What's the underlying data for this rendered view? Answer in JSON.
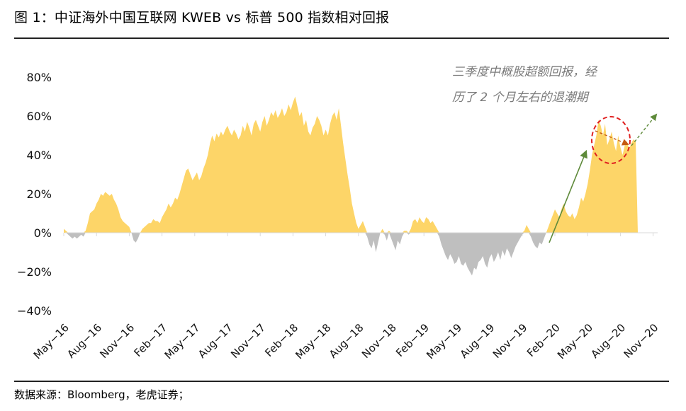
{
  "header": {
    "title": "图 1：中证海外中国互联网 KWEB vs 标普 500 指数相对回报"
  },
  "footer": {
    "source": "数据来源：Bloomberg，老虎证券；"
  },
  "annotation": {
    "line1": "三季度中概股超额回报，经",
    "line2": "历了 2 个月左右的退潮期"
  },
  "colors": {
    "positive": "#FDD568",
    "negative": "#BFBFBF",
    "arrow_up": "#5E8A3A",
    "arrow_down": "#C55A11",
    "circle": "#E02020",
    "axis": "#D9D9D9"
  },
  "chart_data": {
    "type": "area",
    "title": "中证海外中国互联网 KWEB vs 标普 500 指数相对回报",
    "xlabel": "",
    "ylabel": "",
    "ylim": [
      -0.4,
      0.8
    ],
    "y_ticks": [
      0.8,
      0.6,
      0.4,
      0.2,
      0,
      -0.2,
      -0.4
    ],
    "y_tick_labels": [
      "80%",
      "60%",
      "40%",
      "20%",
      "0%",
      "−20%",
      "−40%"
    ],
    "x_ticks": [
      "May−16",
      "Aug−16",
      "Nov−16",
      "Feb−17",
      "May−17",
      "Aug−17",
      "Nov−17",
      "Feb−18",
      "May−18",
      "Aug−18",
      "Nov−18",
      "Feb−19",
      "May−19",
      "Aug−19",
      "Nov−19",
      "Feb−20",
      "May−20",
      "Aug−20",
      "Nov−20"
    ],
    "series": [
      {
        "name": "KWEB vs 标普500 相对回报",
        "x": [
          0,
          0.2,
          0.4,
          0.6,
          0.8,
          1.0,
          1.2,
          1.4,
          1.6,
          1.8,
          2.0,
          2.2,
          2.4,
          2.6,
          2.8,
          3.0,
          3.2,
          3.4,
          3.6,
          3.8,
          4.0,
          4.2,
          4.4,
          4.6,
          4.8,
          5.0,
          5.2,
          5.4,
          5.6,
          5.8,
          6.0,
          6.2,
          6.4,
          6.6,
          6.8,
          7.0,
          7.2,
          7.4,
          7.6,
          7.8,
          8.0,
          8.2,
          8.4,
          8.6,
          8.8,
          9.0,
          9.2,
          9.4,
          9.6,
          9.8,
          10.0,
          10.2,
          10.4,
          10.6,
          10.8,
          11.0,
          11.2,
          11.4,
          11.6,
          11.8,
          12.0,
          12.2,
          12.4,
          12.6,
          12.8,
          13.0,
          13.2,
          13.4,
          13.6,
          13.8,
          14.0,
          14.2,
          14.4,
          14.6,
          14.8,
          15.0,
          15.2,
          15.4,
          15.6,
          15.8,
          16.0,
          16.2,
          16.4,
          16.6,
          16.8,
          17.0,
          17.2,
          17.4,
          17.6,
          17.8,
          18.0,
          18.2,
          18.4,
          18.6,
          18.8,
          19.0,
          19.2,
          19.4,
          19.6,
          19.8,
          20.0,
          20.2,
          20.4,
          20.6,
          20.8,
          21.0,
          21.2,
          21.4,
          21.6,
          21.8,
          22.0,
          22.2,
          22.4,
          22.6,
          22.8,
          23.0,
          23.2,
          23.4,
          23.6,
          23.8,
          24.0,
          24.2,
          24.4,
          24.6,
          24.8,
          25.0,
          25.2,
          25.4,
          25.6,
          25.8,
          26.0,
          26.2,
          26.4,
          26.6,
          26.8,
          27.0,
          27.2,
          27.4,
          27.6,
          27.8,
          28.0,
          28.2,
          28.4,
          28.6,
          28.8,
          29.0,
          29.2,
          29.4,
          29.6,
          29.8,
          30.0,
          30.2,
          30.4,
          30.6,
          30.8,
          31.0,
          31.2,
          31.4,
          31.6,
          31.8,
          32.0,
          32.2,
          32.4,
          32.6,
          32.8,
          33.0,
          33.2,
          33.4,
          33.6,
          33.8,
          34.0,
          34.2,
          34.4,
          34.6,
          34.8,
          35.0,
          35.2,
          35.4,
          35.6,
          35.8,
          36.0,
          36.2,
          36.4,
          36.6,
          36.8,
          37.0,
          37.2,
          37.4,
          37.6,
          37.8,
          38.0,
          38.2,
          38.4,
          38.6,
          38.8,
          39.0,
          39.2,
          39.4,
          39.6,
          39.8,
          40.0,
          40.2,
          40.4,
          40.6,
          40.8,
          41.0,
          41.2,
          41.4,
          41.6,
          41.8,
          42.0,
          42.2,
          42.4,
          42.6,
          42.8,
          43.0,
          43.2,
          43.4,
          43.6,
          43.8,
          44.0,
          44.2,
          44.4,
          44.6,
          44.8,
          45.0,
          45.2,
          45.4,
          45.6,
          45.8,
          46.0,
          46.2,
          46.4,
          46.6,
          46.8,
          47.0,
          47.2,
          47.4,
          47.6,
          47.8,
          48.0,
          48.2,
          48.4,
          48.6,
          48.8,
          49.0,
          49.2,
          49.4,
          49.6,
          49.8,
          50.0,
          50.2,
          50.4,
          50.6,
          50.8,
          51.0,
          51.2,
          51.4,
          51.6,
          51.8,
          52.0,
          52.2,
          52.4,
          52.6
        ],
        "values": [
          0.02,
          0.01,
          -0.01,
          -0.02,
          -0.03,
          -0.02,
          -0.03,
          -0.02,
          -0.01,
          -0.02,
          0.01,
          0.05,
          0.1,
          0.11,
          0.12,
          0.15,
          0.17,
          0.2,
          0.19,
          0.21,
          0.2,
          0.19,
          0.2,
          0.17,
          0.15,
          0.12,
          0.08,
          0.06,
          0.05,
          0.04,
          0.03,
          0.0,
          -0.04,
          -0.05,
          -0.03,
          0.0,
          0.02,
          0.03,
          0.04,
          0.05,
          0.05,
          0.07,
          0.06,
          0.06,
          0.05,
          0.08,
          0.1,
          0.12,
          0.15,
          0.13,
          0.15,
          0.18,
          0.17,
          0.2,
          0.24,
          0.28,
          0.32,
          0.33,
          0.3,
          0.27,
          0.29,
          0.31,
          0.27,
          0.29,
          0.33,
          0.36,
          0.4,
          0.46,
          0.5,
          0.47,
          0.51,
          0.49,
          0.52,
          0.5,
          0.53,
          0.55,
          0.52,
          0.5,
          0.53,
          0.51,
          0.48,
          0.5,
          0.55,
          0.52,
          0.57,
          0.54,
          0.5,
          0.56,
          0.58,
          0.55,
          0.52,
          0.57,
          0.6,
          0.55,
          0.58,
          0.62,
          0.6,
          0.63,
          0.59,
          0.61,
          0.64,
          0.6,
          0.62,
          0.66,
          0.63,
          0.67,
          0.7,
          0.65,
          0.6,
          0.62,
          0.55,
          0.58,
          0.52,
          0.5,
          0.54,
          0.56,
          0.6,
          0.58,
          0.55,
          0.5,
          0.53,
          0.5,
          0.56,
          0.6,
          0.62,
          0.58,
          0.64,
          0.55,
          0.46,
          0.38,
          0.3,
          0.23,
          0.15,
          0.1,
          0.05,
          0.02,
          0.04,
          0.06,
          0.03,
          -0.02,
          -0.06,
          -0.08,
          -0.04,
          -0.1,
          -0.05,
          0.0,
          0.02,
          -0.01,
          -0.04,
          0.01,
          -0.03,
          -0.06,
          -0.09,
          -0.04,
          -0.06,
          -0.02,
          0.01,
          0.01,
          -0.01,
          0.02,
          0.06,
          0.07,
          0.05,
          0.08,
          0.06,
          0.05,
          0.08,
          0.07,
          0.05,
          0.06,
          0.04,
          0.02,
          -0.02,
          -0.06,
          -0.09,
          -0.12,
          -0.14,
          -0.11,
          -0.13,
          -0.16,
          -0.15,
          -0.12,
          -0.16,
          -0.17,
          -0.15,
          -0.18,
          -0.2,
          -0.22,
          -0.18,
          -0.19,
          -0.15,
          -0.14,
          -0.12,
          -0.16,
          -0.18,
          -0.13,
          -0.11,
          -0.15,
          -0.13,
          -0.1,
          -0.14,
          -0.09,
          -0.12,
          -0.08,
          -0.1,
          -0.13,
          -0.1,
          -0.07,
          -0.05,
          -0.03,
          -0.01,
          0.01,
          0.04,
          0.02,
          -0.02,
          -0.05,
          -0.07,
          -0.08,
          -0.05,
          -0.06,
          -0.03,
          0.0,
          0.03,
          0.06,
          0.09,
          0.12,
          0.1,
          0.08,
          0.12,
          0.15,
          0.11,
          0.09,
          0.08,
          0.1,
          0.07,
          0.09,
          0.13,
          0.18,
          0.16,
          0.2,
          0.25,
          0.32,
          0.4,
          0.45,
          0.5,
          0.58,
          0.55,
          0.5,
          0.56,
          0.45,
          0.48,
          0.52,
          0.46,
          0.42,
          0.5,
          0.44,
          0.4,
          0.45,
          0.47,
          0.43,
          0.46,
          0.48,
          0.47,
          0.0
        ]
      }
    ]
  }
}
